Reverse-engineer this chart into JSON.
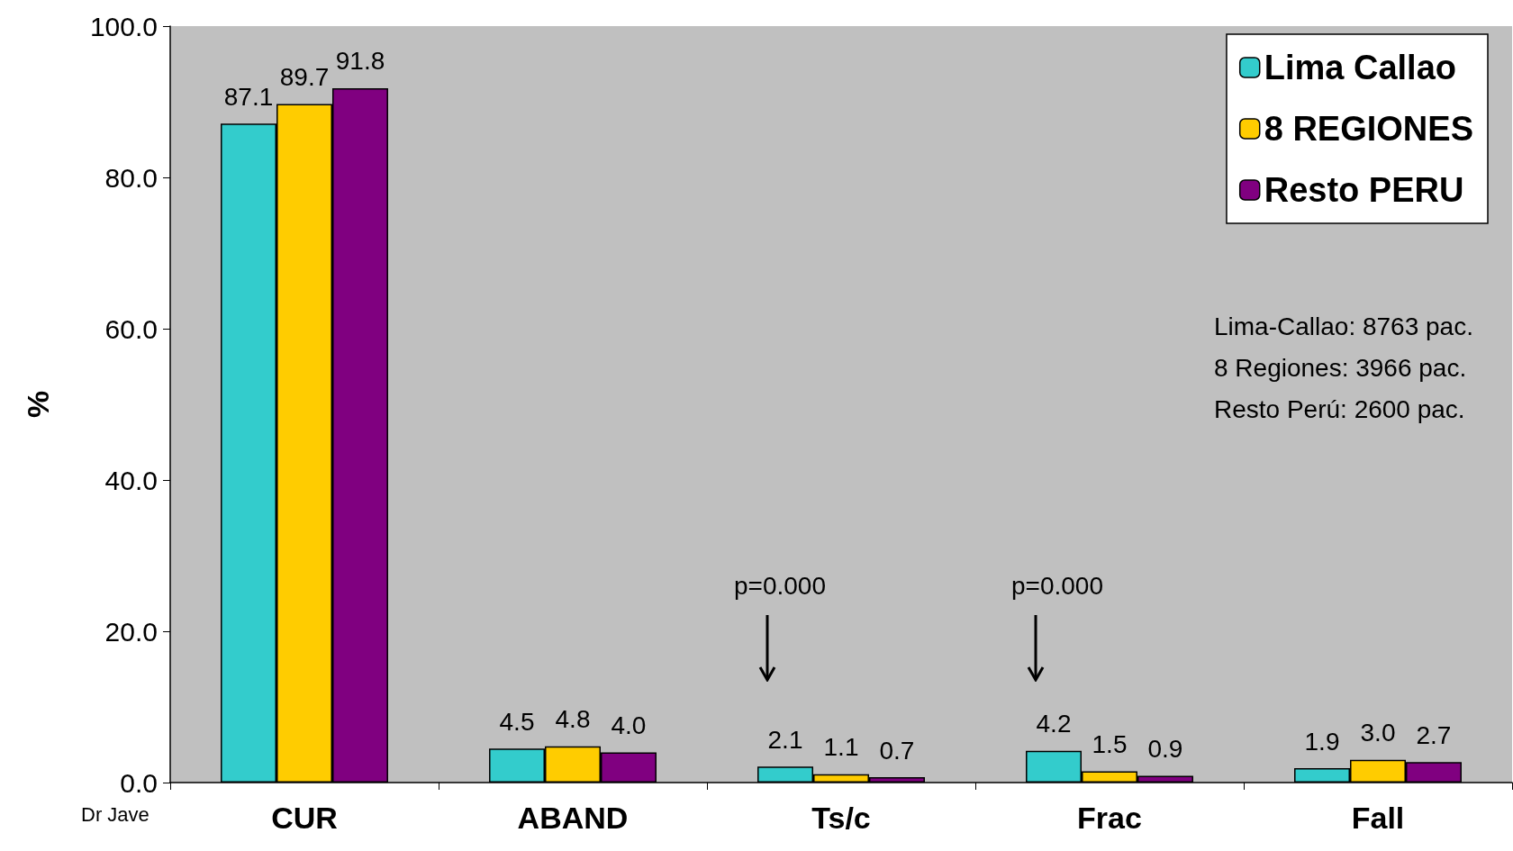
{
  "chart_data": {
    "type": "bar",
    "ylabel": "%",
    "categories": [
      "CUR",
      "ABAND",
      "Ts/c",
      "Frac",
      "Fall"
    ],
    "series": [
      {
        "name": "Lima Callao",
        "color": "#33cccc",
        "values": [
          87.1,
          4.5,
          2.1,
          4.2,
          1.9
        ],
        "value_labels": [
          "87.1",
          "4.5",
          "2.1",
          "4.2",
          "1.9"
        ]
      },
      {
        "name": "8 REGIONES",
        "color": "#ffcc00",
        "values": [
          89.7,
          4.8,
          1.1,
          1.5,
          3.0
        ],
        "value_labels": [
          "89.7",
          "4.8",
          "1.1",
          "1.5",
          "3.0"
        ]
      },
      {
        "name": "Resto PERU",
        "color": "#800080",
        "values": [
          91.8,
          4.0,
          0.7,
          0.9,
          2.7
        ],
        "value_labels": [
          "91.8",
          "4.0",
          "0.7",
          "0.9",
          "2.7"
        ]
      }
    ],
    "ylim": [
      0,
      100
    ],
    "yticks": [
      {
        "value": 0,
        "label": "0.0"
      },
      {
        "value": 20,
        "label": "20.0"
      },
      {
        "value": 40,
        "label": "40.0"
      },
      {
        "value": 60,
        "label": "60.0"
      },
      {
        "value": 80,
        "label": "80.0"
      },
      {
        "value": 100,
        "label": "100.0"
      }
    ],
    "grid": false,
    "legend": "top right",
    "annotations": [
      "Lima-Callao: 8763 pac.",
      "8 Regiones: 3966 pac.",
      "Resto Perú: 2600 pac.",
      "p=0.000",
      "p=0.000",
      "Dr Jave"
    ]
  }
}
